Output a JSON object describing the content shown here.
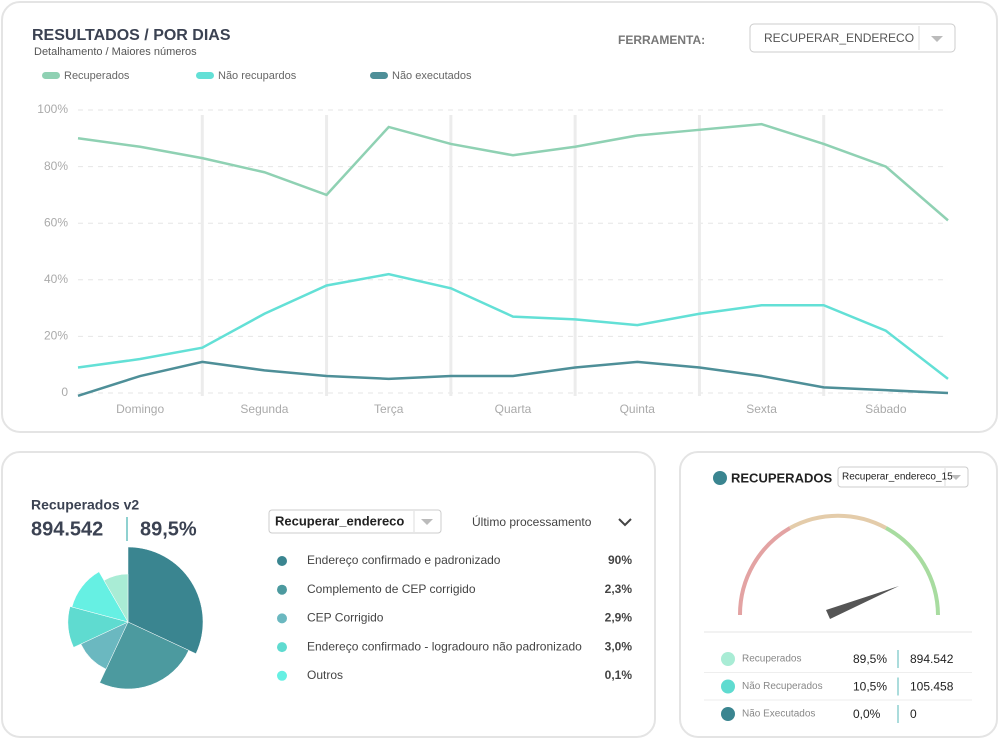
{
  "header": {
    "title": "RESULTADOS / POR DIAS",
    "subtitle": "Detalhamento / Maiores números",
    "tool_label": "FERRAMENTA:",
    "tool_select": "RECUPERAR_ENDERECO"
  },
  "chart_data": {
    "type": "line",
    "categories": [
      null,
      "Domingo",
      null,
      "Segunda",
      null,
      "Terça",
      null,
      "Quarta",
      null,
      "Quinta",
      null,
      "Sexta",
      null,
      "Sábado",
      null
    ],
    "series": [
      {
        "name": "Recuperados",
        "color": "#8fd1b3",
        "values": [
          90,
          87,
          83,
          78,
          70,
          94,
          88,
          84,
          87,
          91,
          93,
          95,
          88,
          80,
          61
        ]
      },
      {
        "name": "Não recupardos",
        "color": "#63e0d6",
        "values": [
          9,
          12,
          16,
          28,
          38,
          42,
          37,
          27,
          26,
          24,
          28,
          31,
          31,
          22,
          5
        ]
      },
      {
        "name": "Não executados",
        "color": "#4e8f98",
        "values": [
          -1,
          6,
          11,
          8,
          6,
          5,
          6,
          6,
          9,
          11,
          9,
          6,
          2,
          1,
          0
        ]
      }
    ],
    "ylim": [
      0,
      100
    ],
    "yticks": [
      0,
      {
        "value": 20,
        "label": "20%"
      },
      {
        "value": 40,
        "label": "40%"
      },
      {
        "value": 60,
        "label": "60%"
      },
      {
        "value": 80,
        "label": "80%"
      },
      {
        "value": 100,
        "label": "100%"
      }
    ],
    "grid": true,
    "legend": "top-left"
  },
  "pie_panel": {
    "title": "Recuperados v2",
    "total": "894.542",
    "percent": "89,5%",
    "select": "Recuperar_endereco",
    "processing": "Último processamento",
    "items": [
      {
        "label": "Endereço confirmado e padronizado",
        "value": "90%"
      },
      {
        "label": "Complemento de CEP corrigido",
        "value": "2,3%"
      },
      {
        "label": "CEP Corrigido",
        "value": "2,9%"
      },
      {
        "label": "Endereço confirmado - logradouro não padronizado",
        "value": "3,0%"
      },
      {
        "label": "Outros",
        "value": "0,1%"
      }
    ]
  },
  "gauge_panel": {
    "title": "RECUPERADOS",
    "select": "Recuperar_endereco_15",
    "rows": [
      {
        "label": "Recuperados",
        "percent": "89,5%",
        "count": "894.542"
      },
      {
        "label": "Não Recuperados",
        "percent": "10,5%",
        "count": "105.458"
      },
      {
        "label": "Não Executados",
        "percent": "0,0%",
        "count": "0"
      }
    ]
  }
}
